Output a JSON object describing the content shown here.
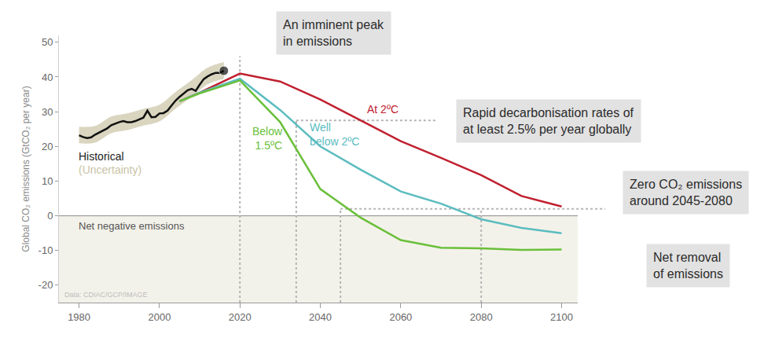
{
  "chart_data": {
    "type": "line",
    "y_title": "Global CO₂ emissions (GtCO₂ per year)",
    "xlim": [
      1975,
      2104
    ],
    "xticks": [
      1980,
      2000,
      2020,
      2040,
      2060,
      2080,
      2100
    ],
    "ylim": [
      -25,
      52
    ],
    "yticks": [
      -20,
      -10,
      0,
      10,
      20,
      30,
      40,
      50
    ],
    "grid": false,
    "band": {
      "name": "(Uncertainty)",
      "color": "#d9d5bf",
      "x": [
        1980,
        1984,
        1988,
        1992,
        1996,
        2000,
        2004,
        2008,
        2012,
        2016
      ],
      "lower": [
        20.9,
        21.1,
        23.8,
        24.7,
        26.0,
        27.2,
        30.9,
        34.3,
        37.9,
        39.5
      ],
      "upper": [
        25.7,
        25.9,
        28.6,
        29.5,
        30.8,
        32.0,
        35.7,
        39.1,
        42.7,
        44.3
      ]
    },
    "series": [
      {
        "name": "Historical",
        "color": "#111111",
        "marker": "last-point",
        "x": [
          1980,
          1981,
          1982,
          1983,
          1984,
          1985,
          1986,
          1987,
          1988,
          1989,
          1990,
          1991,
          1992,
          1993,
          1994,
          1995,
          1996,
          1997,
          1998,
          1999,
          2000,
          2001,
          2002,
          2003,
          2004,
          2005,
          2006,
          2007,
          2008,
          2009,
          2010,
          2011,
          2012,
          2013,
          2014,
          2015,
          2016
        ],
        "values": [
          23.2,
          22.7,
          22.4,
          22.6,
          23.4,
          24.0,
          24.5,
          25.2,
          26.1,
          26.6,
          27.0,
          27.3,
          27.0,
          27.0,
          27.3,
          27.8,
          28.3,
          30.3,
          28.4,
          28.5,
          29.5,
          29.6,
          30.3,
          31.8,
          33.2,
          34.3,
          35.3,
          36.2,
          36.6,
          36.0,
          37.8,
          39.4,
          40.2,
          40.8,
          41.2,
          41.2,
          41.8
        ]
      },
      {
        "name": "At 2ºC",
        "color": "#c0202f",
        "x": [
          2005,
          2010,
          2020,
          2030,
          2040,
          2050,
          2060,
          2070,
          2080,
          2090,
          2100
        ],
        "values": [
          33.0,
          35.5,
          41.0,
          38.7,
          33.5,
          27.5,
          21.5,
          16.7,
          11.7,
          5.7,
          2.7
        ]
      },
      {
        "name": "Well\nbelow 2ºC",
        "color": "#5bbcbf",
        "x": [
          2005,
          2010,
          2020,
          2030,
          2040,
          2050,
          2060,
          2070,
          2080,
          2090,
          2100
        ],
        "values": [
          33.0,
          35.5,
          39.5,
          30.5,
          20.0,
          13.3,
          7.0,
          3.5,
          -1.0,
          -3.5,
          -5.0
        ]
      },
      {
        "name": "Below\n1.5ºC",
        "color": "#6abf3a",
        "x": [
          2005,
          2010,
          2020,
          2030,
          2040,
          2050,
          2060,
          2070,
          2080,
          2090,
          2100
        ],
        "values": [
          33.0,
          35.3,
          39.0,
          27.0,
          7.7,
          -0.5,
          -7.0,
          -9.2,
          -9.4,
          -9.8,
          -9.7
        ]
      }
    ],
    "annotations": [
      {
        "text": "An imminent peak\nin emissions",
        "style": "box"
      },
      {
        "text": "Rapid decarbonisation rates of\nat least 2.5% per year globally",
        "style": "box"
      },
      {
        "text": "Zero CO₂ emissions\naround 2045-2080",
        "style": "box"
      },
      {
        "text": "Net removal\nof emissions",
        "style": "box"
      },
      {
        "text": "Net negative emissions",
        "style": "plain"
      },
      {
        "text": "Data: CDIAC/GCP/IMAGE",
        "style": "note"
      }
    ],
    "guides": {
      "vertical": [
        {
          "x": 2020,
          "y_top": 46
        },
        {
          "x": 2034,
          "y_top": 27.5
        },
        {
          "x": 2045,
          "y_top": 2
        },
        {
          "x": 2080,
          "y_top": 2
        }
      ],
      "horizontal": [
        {
          "y": 27.5,
          "x_from": 2034
        },
        {
          "y": 2,
          "x_from": 2045
        }
      ]
    }
  }
}
